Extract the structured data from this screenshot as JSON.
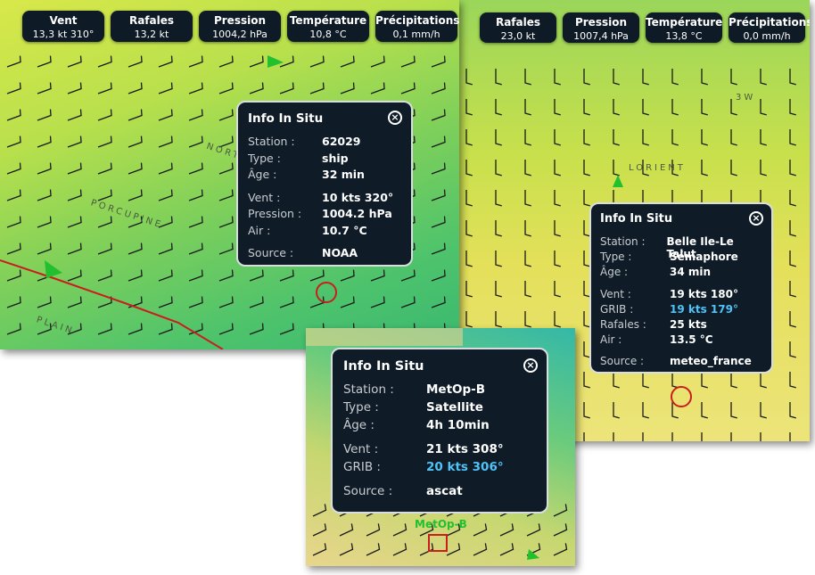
{
  "panels": [
    {
      "toolbar": [
        {
          "label": "Vent",
          "value": "13,3 kt 310°"
        },
        {
          "label": "Rafales",
          "value": "13,2 kt"
        },
        {
          "label": "Pression",
          "value": "1004,2 hPa"
        },
        {
          "label": "Température",
          "value": "10,8 °C"
        },
        {
          "label": "Précipitations",
          "value": "0,1 mm/h"
        }
      ],
      "map_labels": [
        "PORCUPINE",
        "NORTH AT",
        "PLAIN"
      ],
      "popup": {
        "title": "Info In Situ",
        "groups": [
          [
            {
              "label": "Station :",
              "value": "62029"
            },
            {
              "label": "Type :",
              "value": "ship"
            },
            {
              "label": "Âge :",
              "value": "32 min"
            }
          ],
          [
            {
              "label": "Vent :",
              "value": "10 kts 320°"
            },
            {
              "label": "Pression :",
              "value": "1004.2 hPa"
            },
            {
              "label": "Air :",
              "value": "10.7 °C"
            }
          ],
          [
            {
              "label": "Source :",
              "value": "NOAA"
            }
          ]
        ]
      }
    },
    {
      "toolbar": [
        {
          "label": "Rafales",
          "value": "23,0 kt"
        },
        {
          "label": "Pression",
          "value": "1007,4 hPa"
        },
        {
          "label": "Température",
          "value": "13,8 °C"
        },
        {
          "label": "Précipitations",
          "value": "0,0 mm/h"
        }
      ],
      "map_labels": [
        "LORIENT",
        "3W"
      ],
      "popup": {
        "title": "Info In Situ",
        "groups": [
          [
            {
              "label": "Station :",
              "value": "Belle Ile-Le Talut"
            },
            {
              "label": "Type :",
              "value": "Sémaphore"
            },
            {
              "label": "Âge :",
              "value": "34 min"
            }
          ],
          [
            {
              "label": "Vent :",
              "value": "19 kts 180°"
            },
            {
              "label": "GRIB :",
              "value": "19 kts 179°",
              "color": "#4fc3f7"
            },
            {
              "label": "Rafales :",
              "value": "25 kts"
            },
            {
              "label": "Air :",
              "value": "13.5 °C"
            }
          ],
          [
            {
              "label": "Source :",
              "value": "meteo_france"
            }
          ]
        ]
      }
    },
    {
      "toolbar": [],
      "map_labels": [
        "MetOp-B"
      ],
      "popup": {
        "title": "Info In Situ",
        "groups": [
          [
            {
              "label": "Station :",
              "value": "MetOp-B"
            },
            {
              "label": "Type :",
              "value": "Satellite"
            },
            {
              "label": "Âge :",
              "value": "4h 10min"
            }
          ],
          [
            {
              "label": "Vent :",
              "value": "21 kts 308°"
            },
            {
              "label": "GRIB :",
              "value": "20 kts 306°",
              "color": "#4fc3f7"
            }
          ],
          [
            {
              "label": "Source :",
              "value": "ascat"
            }
          ]
        ]
      }
    }
  ]
}
